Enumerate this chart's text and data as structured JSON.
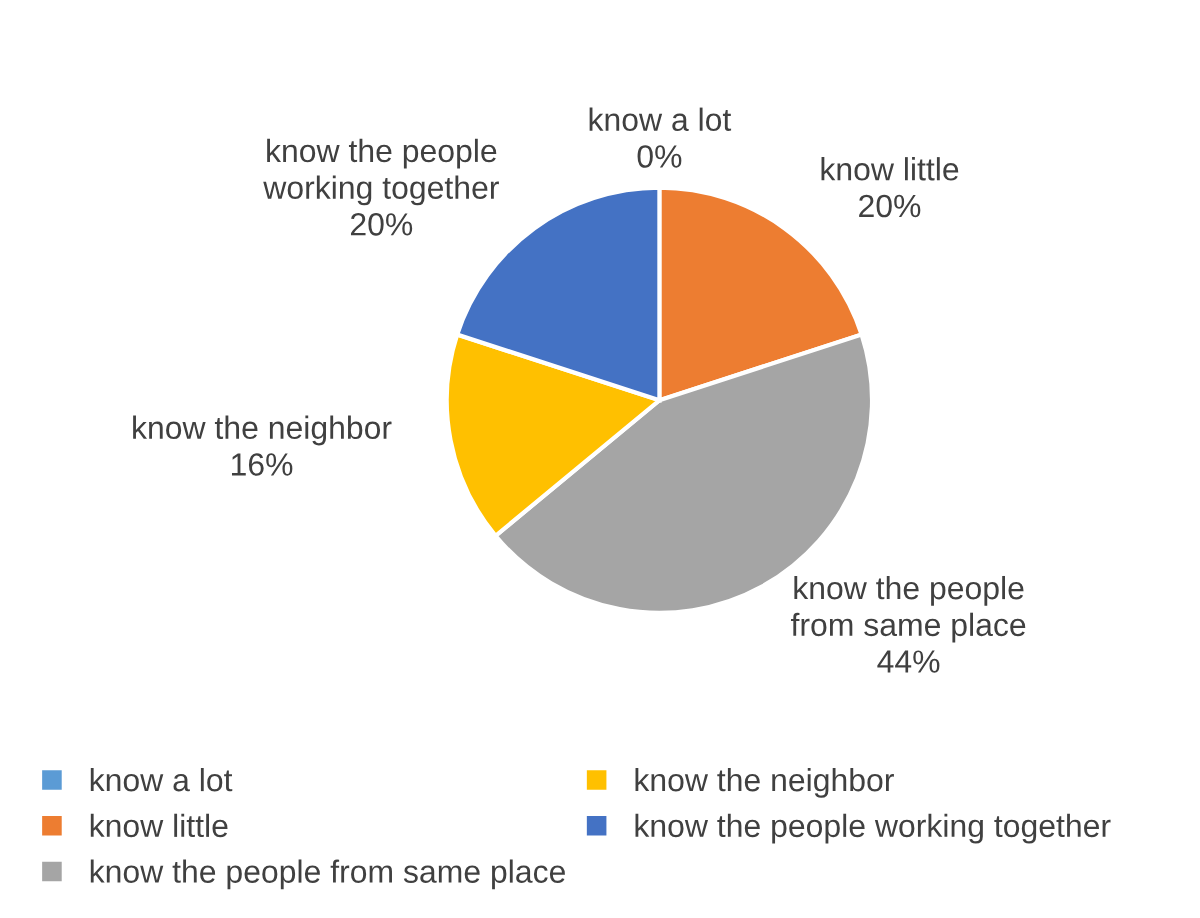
{
  "chart_data": {
    "type": "pie",
    "categories": [
      "know a lot",
      "know little",
      "know the people from same place",
      "know the neighbor",
      "know the people working together"
    ],
    "values": [
      0,
      20,
      44,
      16,
      20
    ],
    "value_labels": [
      "0%",
      "20%",
      "44%",
      "16%",
      "20%"
    ],
    "colors": [
      "#5b9bd5",
      "#ed7d31",
      "#a5a5a5",
      "#ffc000",
      "#4472c4"
    ],
    "legend": "bottom"
  }
}
